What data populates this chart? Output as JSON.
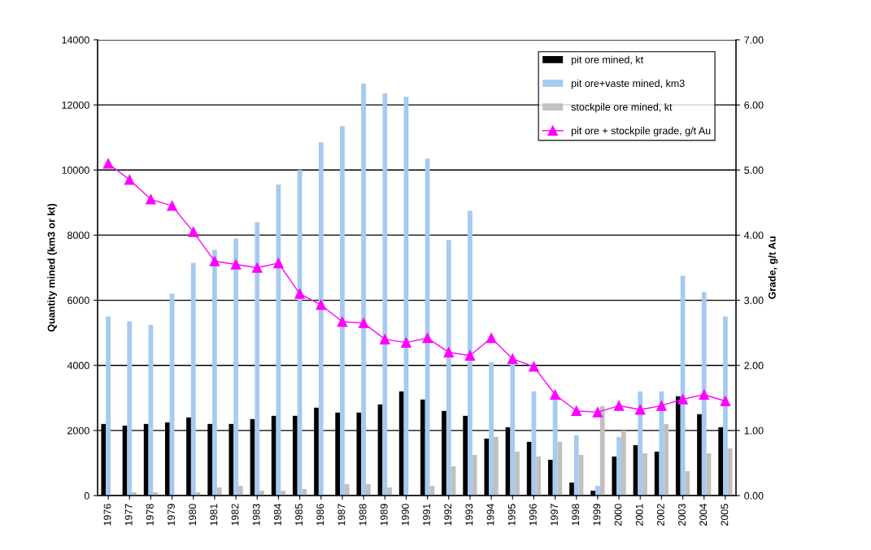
{
  "chart_data": {
    "type": "bar",
    "xlabel": null,
    "ylabel": "Quantity mined (km3 or kt)",
    "y2label": "Grade, g/t Au",
    "categories": [
      "1976",
      "1977",
      "1978",
      "1979",
      "1980",
      "1981",
      "1982",
      "1983",
      "1984",
      "1985",
      "1986",
      "1987",
      "1988",
      "1989",
      "1990",
      "1991",
      "1992",
      "1993",
      "1994",
      "1995",
      "1996",
      "1997",
      "1998",
      "1999",
      "2000",
      "2001",
      "2002",
      "2003",
      "2004",
      "2005"
    ],
    "series": [
      {
        "name": "pit ore mined, kt",
        "color": "#000000",
        "values": [
          2200,
          2150,
          2200,
          2250,
          2400,
          2200,
          2200,
          2350,
          2450,
          2450,
          2700,
          2550,
          2550,
          2800,
          3200,
          2950,
          2600,
          2450,
          1750,
          2100,
          1650,
          1100,
          400,
          150,
          1200,
          1550,
          1350,
          3050,
          2500,
          2100
        ]
      },
      {
        "name": "pit ore+vaste mined, km3",
        "color": "#a6caf0",
        "values": [
          5500,
          5350,
          5250,
          6200,
          7150,
          7550,
          7900,
          8400,
          9550,
          10000,
          10850,
          11350,
          12650,
          12350,
          12250,
          10350,
          7850,
          8750,
          4100,
          4050,
          3200,
          3000,
          1850,
          300,
          1800,
          3200,
          3200,
          6750,
          6250,
          5500
        ]
      },
      {
        "name": "stockpile ore mined, kt",
        "color": "#c0c0c0",
        "values": [
          0,
          100,
          100,
          null,
          100,
          250,
          300,
          150,
          150,
          200,
          0,
          350,
          350,
          250,
          0,
          300,
          900,
          1250,
          1800,
          1350,
          1200,
          1650,
          1250,
          2750,
          2000,
          1300,
          2200,
          750,
          1300,
          1450
        ]
      },
      {
        "name": "pit ore + stockpile grade, g/t Au",
        "type": "line",
        "axis": "y2",
        "color": "#ff00ff",
        "marker": "triangle",
        "values": [
          5.1,
          4.85,
          4.55,
          4.45,
          4.05,
          3.6,
          3.55,
          3.5,
          3.57,
          3.1,
          2.93,
          2.67,
          2.65,
          2.4,
          2.35,
          2.42,
          2.2,
          2.15,
          2.42,
          2.1,
          1.98,
          1.55,
          1.3,
          1.28,
          1.38,
          1.32,
          1.38,
          1.48,
          1.55,
          1.45
        ]
      }
    ],
    "ylim": [
      0,
      14000
    ],
    "yticks": [
      0,
      2000,
      4000,
      6000,
      8000,
      10000,
      12000,
      14000
    ],
    "y2lim": [
      0,
      7
    ],
    "y2ticks": [
      {
        "value": 0,
        "label": "0.00"
      },
      {
        "value": 1,
        "label": "1.00"
      },
      {
        "value": 2,
        "label": "2.00"
      },
      {
        "value": 3,
        "label": "3.00"
      },
      {
        "value": 4,
        "label": "4.00"
      },
      {
        "value": 5,
        "label": "5.00"
      },
      {
        "value": 6,
        "label": "6.00"
      },
      {
        "value": 7,
        "label": "7.00"
      }
    ],
    "grid": "y",
    "legend": "top right"
  }
}
